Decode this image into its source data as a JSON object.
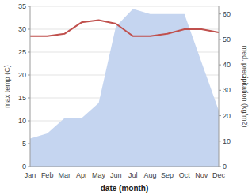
{
  "chart_data": {
    "type": "line",
    "xlabel": "date (month)",
    "ylabel": "max temp (C)",
    "y2label": "med. precipitation (kg/m2)",
    "categories": [
      "Jan",
      "Feb",
      "Mar",
      "Apr",
      "May",
      "Jun",
      "Jul",
      "Aug",
      "Sep",
      "Oct",
      "Nov",
      "Dec"
    ],
    "series": [
      {
        "type": "area",
        "axis": "y2",
        "color": "#c5d5f0",
        "values": [
          11,
          13,
          19,
          19,
          25,
          55,
          62,
          60,
          60,
          60,
          41,
          22
        ]
      },
      {
        "type": "line",
        "color": "#c0504d",
        "values": [
          28.5,
          28.5,
          29.0,
          31.5,
          32.0,
          31.2,
          28.5,
          28.5,
          29.0,
          30.0,
          30.0,
          29.3
        ]
      }
    ],
    "ylim": [
      0,
      35
    ],
    "yticks": [
      0,
      5,
      10,
      15,
      20,
      25,
      30,
      35
    ],
    "y2lim": [
      0,
      63
    ],
    "y2ticks": [
      0,
      10,
      20,
      30,
      40,
      50,
      60
    ],
    "grid": true
  }
}
